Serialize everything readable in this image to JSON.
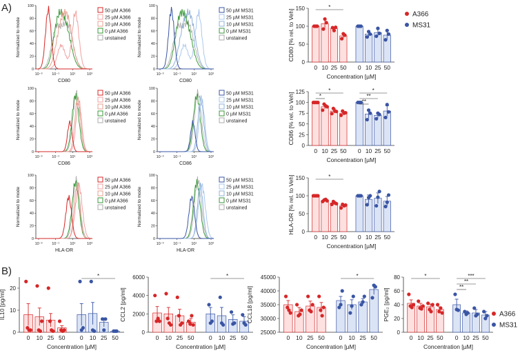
{
  "colors": {
    "red": "#d62728",
    "red_fill": "#fde0e0",
    "blue": "#3a55a4",
    "blue_fill": "#dbe4f5",
    "green": "#3a9a3a",
    "pale_red": "#f0a0a0",
    "pale_blue": "#a9c7ee",
    "gray": "#aaaaaa"
  },
  "panel_labels": [
    "A)",
    "B)"
  ],
  "flow": {
    "ylabel": "Normalized to mode",
    "yticks": [
      "0",
      "20",
      "40",
      "60",
      "80",
      "100"
    ],
    "xticks": [
      "10⁻³",
      "10⁻¹",
      "10¹",
      "10³"
    ],
    "markers": [
      "CD80",
      "CD86",
      "HLA-DR"
    ],
    "legend_a366": [
      "50 µM A366",
      "25 µM A366",
      "10 µM A366",
      "0 µM A366",
      "unstained"
    ],
    "legend_ms31": [
      "50 µM MS31",
      "25 µM MS31",
      "10 µM MS31",
      "0 µM MS31",
      "unstained"
    ]
  },
  "legend": {
    "a366": "A366",
    "ms31": "MS31"
  },
  "chart_data": [
    {
      "id": "cd80",
      "type": "bar",
      "ylabel": "CD80 [% rel. to Veh]",
      "xlabel": "Concentration [µM]",
      "ylim": [
        0,
        150
      ],
      "yticks": [
        0,
        50,
        100,
        150
      ],
      "categories": [
        "0",
        "10",
        "25",
        "50"
      ],
      "series": [
        {
          "name": "A366",
          "values": [
            100,
            107,
            93,
            73
          ],
          "errors": [
            0,
            12,
            5,
            6
          ],
          "points": [
            [
              100,
              100,
              100
            ],
            [
              92,
              120,
              110
            ],
            [
              96,
              88,
              97
            ],
            [
              65,
              79,
              75
            ]
          ]
        },
        {
          "name": "MS31",
          "values": [
            100,
            78,
            82,
            75
          ],
          "errors": [
            0,
            8,
            10,
            13
          ],
          "points": [
            [
              100,
              100,
              100
            ],
            [
              70,
              85,
              78
            ],
            [
              72,
              94,
              80
            ],
            [
              62,
              88,
              78
            ]
          ]
        }
      ],
      "sig": [
        {
          "label": "*",
          "series": "A366",
          "from": "0",
          "to": "50"
        }
      ]
    },
    {
      "id": "cd86",
      "type": "bar",
      "ylabel": "CD86 [% rel. to Veh]",
      "xlabel": "Concentration [µM]",
      "ylim": [
        0,
        125
      ],
      "yticks": [
        0,
        25,
        50,
        75,
        100,
        125
      ],
      "categories": [
        "0",
        "10",
        "25",
        "50"
      ],
      "series": [
        {
          "name": "A366",
          "values": [
            100,
            90,
            80,
            75
          ],
          "errors": [
            0,
            5,
            5,
            4
          ],
          "points": [
            [
              100,
              100,
              100,
              100
            ],
            [
              82,
              96,
              92,
              90
            ],
            [
              74,
              86,
              80,
              79
            ],
            [
              70,
              80,
              75,
              76
            ]
          ]
        },
        {
          "name": "MS31",
          "values": [
            100,
            73,
            70,
            80
          ],
          "errors": [
            0,
            10,
            6,
            12
          ],
          "points": [
            [
              100,
              100,
              100
            ],
            [
              60,
              82,
              75
            ],
            [
              62,
              75,
              72
            ],
            [
              65,
              95,
              78
            ]
          ]
        }
      ],
      "sig": [
        {
          "label": "*",
          "series": "A366",
          "from": "0",
          "to": "50"
        },
        {
          "label": "*",
          "series": "A366",
          "from": "0",
          "to": "10"
        },
        {
          "label": "*",
          "series": "MS31",
          "from": "0",
          "to": "50"
        },
        {
          "label": "**",
          "series": "MS31",
          "from": "0",
          "to": "25"
        },
        {
          "label": "**",
          "series": "MS31",
          "from": "0",
          "to": "10"
        }
      ]
    },
    {
      "id": "hladr",
      "type": "bar",
      "ylabel": "HLA-DR [% rel. to Veh]",
      "xlabel": "Concentration [µM]",
      "ylim": [
        0,
        150
      ],
      "yticks": [
        0,
        50,
        100,
        150
      ],
      "categories": [
        "0",
        "10",
        "25",
        "50"
      ],
      "series": [
        {
          "name": "A366",
          "values": [
            100,
            87,
            80,
            72
          ],
          "errors": [
            0,
            3,
            4,
            4
          ],
          "points": [
            [
              100,
              100,
              100,
              100
            ],
            [
              84,
              88,
              90,
              86
            ],
            [
              76,
              84,
              80,
              78
            ],
            [
              66,
              76,
              72,
              74
            ]
          ]
        },
        {
          "name": "MS31",
          "values": [
            100,
            90,
            93,
            85
          ],
          "errors": [
            0,
            12,
            15,
            13
          ],
          "points": [
            [
              100,
              100,
              100
            ],
            [
              75,
              95,
              100
            ],
            [
              72,
              96,
              112
            ],
            [
              70,
              82,
              102
            ]
          ]
        }
      ],
      "sig": [
        {
          "label": "*",
          "series": "A366",
          "from": "0",
          "to": "50"
        }
      ]
    },
    {
      "id": "il10",
      "type": "bar",
      "ylabel": "IL10 [pg/ml]",
      "xlabel": "Concentration [µM]",
      "ylim": [
        0,
        25
      ],
      "yticks": [
        0,
        10,
        20
      ],
      "categories": [
        "0",
        "10",
        "25",
        "50"
      ],
      "series": [
        {
          "name": "A366",
          "values": [
            8,
            7,
            5.5,
            2
          ],
          "errors": [
            5,
            4,
            3,
            1
          ],
          "points": [
            [
              23,
              2,
              1,
              1
            ],
            [
              21,
              1,
              0.5,
              5
            ],
            [
              20,
              5,
              1,
              0.5
            ],
            [
              5,
              1,
              0.5,
              1
            ]
          ]
        },
        {
          "name": "MS31",
          "values": [
            8,
            8.5,
            4.5,
            0.5
          ],
          "errors": [
            5,
            5,
            2,
            0.3
          ],
          "points": [
            [
              23,
              1,
              2
            ],
            [
              23,
              1,
              0.5
            ],
            [
              6,
              1,
              6
            ],
            [
              0.5,
              0.5,
              0.5
            ]
          ]
        }
      ],
      "sig": [
        {
          "label": "*",
          "series": "MS31",
          "from": "0",
          "to": "50"
        }
      ]
    },
    {
      "id": "ccl2",
      "type": "bar",
      "ylabel": "CCL2 [pg/ml]",
      "xlabel": "Concentration [µM]",
      "ylim": [
        0,
        6000
      ],
      "yticks": [
        0,
        2000,
        4000,
        6000
      ],
      "categories": [
        "0",
        "10",
        "25",
        "50"
      ],
      "series": [
        {
          "name": "A366",
          "values": [
            2100,
            2000,
            1800,
            1100
          ],
          "errors": [
            700,
            700,
            700,
            400
          ],
          "points": [
            [
              4000,
              1200,
              1500,
              1200
            ],
            [
              4200,
              1500,
              1000,
              800
            ],
            [
              3800,
              1800,
              800,
              1000
            ],
            [
              1200,
              900,
              1800,
              800
            ]
          ]
        },
        {
          "name": "MS31",
          "values": [
            2000,
            1800,
            1400,
            1200
          ],
          "errors": [
            700,
            900,
            500,
            500
          ],
          "points": [
            [
              3000,
              1000,
              1200
            ],
            [
              3800,
              1000,
              800
            ],
            [
              2200,
              900,
              1000
            ],
            [
              1900,
              1000,
              800
            ]
          ]
        }
      ],
      "sig": [
        {
          "label": "*",
          "series": "MS31",
          "from": "0",
          "to": "50"
        }
      ]
    },
    {
      "id": "ccl18",
      "type": "bar",
      "ylabel": "CCL18 [pg/ml]",
      "xlabel": "Concentration [µM]",
      "ylim": [
        25000,
        45000
      ],
      "yticks": [
        25000,
        30000,
        35000,
        40000,
        45000
      ],
      "categories": [
        "0",
        "10",
        "25",
        "50"
      ],
      "series": [
        {
          "name": "A366",
          "values": [
            35000,
            32500,
            34500,
            34000
          ],
          "errors": [
            1500,
            1500,
            1800,
            1800
          ],
          "points": [
            [
              38000,
              34000,
              33000,
              32000
            ],
            [
              35000,
              31000,
              31500,
              33000
            ],
            [
              38000,
              33000,
              32500,
              35000
            ],
            [
              38000,
              33000,
              31000,
              34000
            ]
          ]
        },
        {
          "name": "MS31",
          "values": [
            36500,
            35000,
            36000,
            40500
          ],
          "errors": [
            1500,
            1800,
            1200,
            1800
          ],
          "points": [
            [
              34000,
              35000,
              40000
            ],
            [
              32000,
              34500,
              38000
            ],
            [
              35000,
              36000,
              38000
            ],
            [
              37500,
              42000,
              41500
            ]
          ]
        }
      ],
      "sig": [
        {
          "label": "*",
          "series": "MS31",
          "from": "0",
          "to": "50"
        }
      ]
    },
    {
      "id": "pge2",
      "type": "bar",
      "ylabel": "PGE₂ [pg/ml]",
      "xlabel": "Concentration [µM]",
      "ylim": [
        0,
        80
      ],
      "yticks": [
        0,
        20,
        40,
        60,
        80
      ],
      "categories": [
        "0",
        "10",
        "25",
        "50"
      ],
      "series": [
        {
          "name": "A366",
          "values": [
            42,
            38,
            37,
            33
          ],
          "errors": [
            5,
            4,
            4,
            4
          ],
          "points": [
            [
              55,
              38,
              36,
              40
            ],
            [
              45,
              35,
              34,
              38
            ],
            [
              42,
              33,
              30,
              40
            ],
            [
              40,
              30,
              35,
              28
            ]
          ]
        },
        {
          "name": "MS31",
          "values": [
            40,
            28,
            28,
            25
          ],
          "errors": [
            8,
            3,
            5,
            5
          ],
          "points": [
            [
              55,
              33,
              32
            ],
            [
              30,
              26,
              28
            ],
            [
              35,
              24,
              26
            ],
            [
              30,
              20,
              24
            ]
          ]
        }
      ],
      "sig": [
        {
          "label": "*",
          "series": "A366",
          "from": "0",
          "to": "50"
        },
        {
          "label": "***",
          "series": "MS31",
          "from": "0",
          "to": "50"
        },
        {
          "label": "**",
          "series": "MS31",
          "from": "0",
          "to": "25"
        },
        {
          "label": "**",
          "series": "MS31",
          "from": "0",
          "to": "10"
        }
      ]
    }
  ]
}
